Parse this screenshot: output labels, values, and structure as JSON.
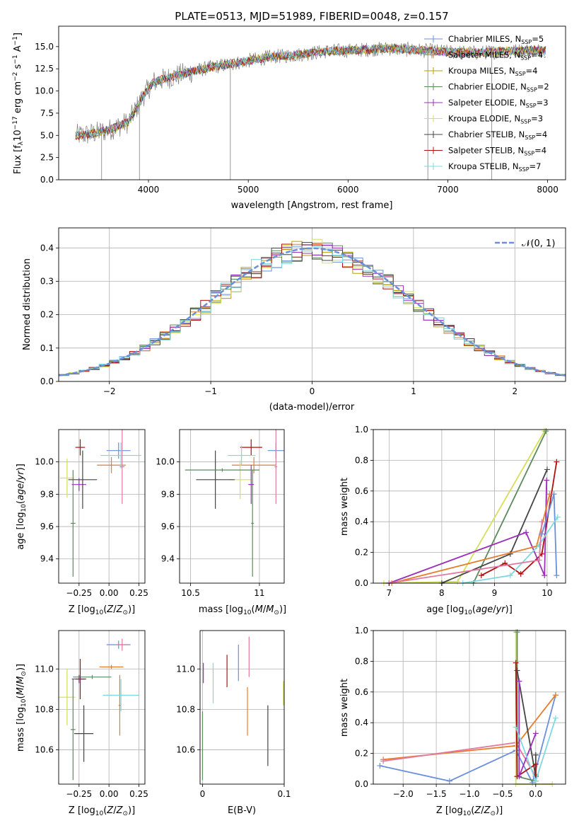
{
  "chart_data": [
    {
      "id": "spectrum",
      "type": "line",
      "title": "PLATE=0513, MJD=51989, FIBERID=0048, z=0.157",
      "xlabel": "wavelength [Angstrom, rest frame]",
      "ylabel": "Flux [f_λ10^-17 erg cm^-2 s^-1 A^-1]",
      "xlim": [
        3100,
        8180
      ],
      "ylim": [
        0,
        17.3
      ],
      "xticks": [
        4000,
        5000,
        6000,
        7000,
        8000
      ],
      "yticks": [
        0.0,
        2.5,
        5.0,
        7.5,
        10.0,
        12.5,
        15.0
      ],
      "grid": false,
      "legend_loc": "right",
      "series": [
        {
          "name": "Chabrier MILES",
          "nssp": "5",
          "color": "#6a8fdc"
        },
        {
          "name": "Salpeter MILES",
          "nssp": "4",
          "color": "#e87c2a"
        },
        {
          "name": "Kroupa MILES",
          "nssp": "4",
          "color": "#b8a000"
        },
        {
          "name": "Chabrier ELODIE",
          "nssp": "2",
          "color": "#5c8a5c"
        },
        {
          "name": "Salpeter ELODIE",
          "nssp": "3",
          "color": "#9b30b8"
        },
        {
          "name": "Kroupa ELODIE",
          "nssp": "3",
          "color": "#d4e05a"
        },
        {
          "name": "Chabrier STELIB",
          "nssp": "4",
          "color": "#444444"
        },
        {
          "name": "Salpeter STELIB",
          "nssp": "4",
          "color": "#b01010"
        },
        {
          "name": "Kroupa STELIB",
          "nssp": "7",
          "color": "#7fd8e0"
        }
      ],
      "data_color": "#808080",
      "continuum": {
        "x": [
          3270,
          3400,
          3600,
          3800,
          3950,
          4050,
          4300,
          4600,
          4900,
          5200,
          5500,
          5800,
          6100,
          6400,
          6700,
          7000,
          7300,
          7600,
          7900
        ],
        "y": [
          5.0,
          5.1,
          5.6,
          6.5,
          9.5,
          11.0,
          11.8,
          12.6,
          13.2,
          13.8,
          14.1,
          14.5,
          14.6,
          14.8,
          14.6,
          14.4,
          14.3,
          14.5,
          14.6
        ]
      },
      "spikes_x": [
        3530,
        3910,
        4820,
        6800,
        7440
      ]
    },
    {
      "id": "residuals",
      "type": "line",
      "xlabel": "(data-model)/error",
      "ylabel": "Normed distribution",
      "xlim": [
        -2.5,
        2.5
      ],
      "ylim": [
        0,
        0.46
      ],
      "xticks": [
        -2,
        -1,
        0,
        1,
        2
      ],
      "yticks": [
        0.0,
        0.1,
        0.2,
        0.3,
        0.4
      ],
      "grid": true,
      "legend_loc": "upper right",
      "legend_label": "𝒩(0, 1)",
      "gaussian_color": "#6a8fdc",
      "bin_width": 0.1
    },
    {
      "id": "age-vs-Z",
      "type": "scatter",
      "xlabel": "Z [log₁₀(Z/Z⊙)]",
      "ylabel": "age  [log₁₀(age/yr)]",
      "xlim": [
        -0.42,
        0.3
      ],
      "ylim": [
        9.25,
        10.2
      ],
      "xticks": [
        -0.25,
        0.0,
        0.25
      ],
      "xticklabels": [
        "−0.25",
        "0.00",
        "0.25"
      ],
      "yticks": [
        9.4,
        9.6,
        9.8,
        10.0
      ],
      "grid": true,
      "points": [
        {
          "x": 0.08,
          "y": 10.07,
          "xerr": 0.1,
          "yerr": 0.05,
          "color": "#6a8fdc"
        },
        {
          "x": 0.02,
          "y": 9.98,
          "xerr": 0.12,
          "yerr": 0.05,
          "color": "#e87c2a"
        },
        {
          "x": -0.35,
          "y": 9.9,
          "xerr": 0.06,
          "yerr": 0.12,
          "color": "#d4e05a"
        },
        {
          "x": -0.3,
          "y": 9.62,
          "xerr": 0.02,
          "yerr": 0.33,
          "color": "#5c8a5c"
        },
        {
          "x": -0.25,
          "y": 9.86,
          "xerr": 0.06,
          "yerr": 0.04,
          "color": "#9b30b8"
        },
        {
          "x": -0.22,
          "y": 9.89,
          "xerr": 0.12,
          "yerr": 0.18,
          "color": "#444444"
        },
        {
          "x": -0.24,
          "y": 10.09,
          "xerr": 0.04,
          "yerr": 0.05,
          "color": "#b01010"
        },
        {
          "x": 0.1,
          "y": 10.04,
          "xerr": 0.17,
          "yerr": 0.08,
          "color": "#7fd8e0"
        },
        {
          "x": 0.11,
          "y": 9.97,
          "xerr": 0.02,
          "yerr": 0.23,
          "color": "#e07aa0"
        }
      ]
    },
    {
      "id": "age-vs-mass",
      "type": "scatter",
      "xlabel": "mass [log₁₀(M/M⊙)]",
      "ylabel": "",
      "xlim": [
        10.42,
        11.18
      ],
      "ylim": [
        9.25,
        10.2
      ],
      "xticks": [
        10.5,
        11.0
      ],
      "yticks": [
        9.4,
        9.6,
        9.8,
        10.0
      ],
      "grid": true,
      "points": [
        {
          "x": 11.12,
          "y": 10.07,
          "xerr": 0.06,
          "yerr": 0.05,
          "color": "#6a8fdc"
        },
        {
          "x": 10.96,
          "y": 9.98,
          "xerr": 0.16,
          "yerr": 0.05,
          "color": "#e87c2a"
        },
        {
          "x": 10.86,
          "y": 9.89,
          "xerr": 0.08,
          "yerr": 0.12,
          "color": "#d4e05a"
        },
        {
          "x": 10.95,
          "y": 9.62,
          "xerr": 0.01,
          "yerr": 0.33,
          "color": "#5c8a5c"
        },
        {
          "x": 10.94,
          "y": 9.86,
          "xerr": 0.02,
          "yerr": 0.12,
          "color": "#9b30b8"
        },
        {
          "x": 10.68,
          "y": 9.89,
          "xerr": 0.14,
          "yerr": 0.18,
          "color": "#444444"
        },
        {
          "x": 10.94,
          "y": 10.09,
          "xerr": 0.08,
          "yerr": 0.05,
          "color": "#b01010"
        },
        {
          "x": 10.87,
          "y": 10.04,
          "xerr": 0.1,
          "yerr": 0.06,
          "color": "#7fd8e0"
        },
        {
          "x": 11.12,
          "y": 9.97,
          "xerr": 0.01,
          "yerr": 0.23,
          "color": "#e07aa0"
        },
        {
          "x": 10.73,
          "y": 9.95,
          "xerr": 0.27,
          "yerr": 0.01,
          "color": "#5c8a5c"
        }
      ]
    },
    {
      "id": "weight-vs-age",
      "type": "line",
      "xlabel": "age  [log₁₀(age/yr)]",
      "ylabel": "mass weight",
      "xlim": [
        6.7,
        10.35
      ],
      "ylim": [
        0,
        1.0
      ],
      "xticks": [
        7,
        8,
        9,
        10
      ],
      "yticks": [
        0.0,
        0.2,
        0.4,
        0.6,
        0.8,
        1.0
      ],
      "grid": true,
      "series": [
        {
          "color": "#d4e05a",
          "x": [
            6.9,
            8.3,
            9.95
          ],
          "y": [
            0.0,
            0.01,
            0.99
          ]
        },
        {
          "color": "#5c8a5c",
          "x": [
            8.6,
            9.98
          ],
          "y": [
            0.0,
            0.99
          ]
        },
        {
          "color": "#444444",
          "x": [
            8.0,
            9.3,
            10.0
          ],
          "y": [
            0.0,
            0.19,
            0.74
          ]
        },
        {
          "color": "#b01010",
          "x": [
            8.75,
            9.2,
            9.5,
            9.9,
            10.18
          ],
          "y": [
            0.05,
            0.13,
            0.06,
            0.19,
            0.79
          ]
        },
        {
          "color": "#9b30b8",
          "x": [
            7.0,
            9.6,
            9.95,
            9.99
          ],
          "y": [
            0.0,
            0.33,
            0.05,
            0.67
          ]
        },
        {
          "color": "#e87c2a",
          "x": [
            7.05,
            9.8,
            10.05
          ],
          "y": [
            0.0,
            0.24,
            0.58
          ]
        },
        {
          "color": "#6a8fdc",
          "x": [
            9.9,
            10.13,
            10.18
          ],
          "y": [
            0.32,
            0.58,
            0.05
          ]
        },
        {
          "color": "#7fd8e0",
          "x": [
            8.4,
            9.3,
            9.85,
            10.2
          ],
          "y": [
            0.0,
            0.05,
            0.25,
            0.43
          ]
        },
        {
          "color": "#e07aa0",
          "x": [
            7.0,
            9.85,
            9.9
          ],
          "y": [
            0.0,
            0.15,
            0.4
          ]
        }
      ]
    },
    {
      "id": "mass-vs-Z",
      "type": "scatter",
      "xlabel": "Z [log₁₀(Z/Z⊙)]",
      "ylabel": "mass [log₁₀(M/M⊙)]",
      "xlim": [
        -0.42,
        0.3
      ],
      "ylim": [
        10.43,
        11.19
      ],
      "xticks": [
        -0.25,
        0.0,
        0.25
      ],
      "xticklabels": [
        "−0.25",
        "0.00",
        "0.25"
      ],
      "yticks": [
        10.6,
        10.8,
        11.0
      ],
      "grid": true,
      "points": [
        {
          "x": 0.08,
          "y": 11.12,
          "xerr": 0.1,
          "yerr": 0.02,
          "color": "#6a8fdc"
        },
        {
          "x": 0.02,
          "y": 11.01,
          "xerr": 0.1,
          "yerr": 0.01,
          "color": "#e87c2a"
        },
        {
          "x": 0.09,
          "y": 10.82,
          "xerr": 0.01,
          "yerr": 0.15,
          "color": "#e87c2a"
        },
        {
          "x": -0.35,
          "y": 10.86,
          "xerr": 0.07,
          "yerr": 0.14,
          "color": "#d4e05a"
        },
        {
          "x": -0.3,
          "y": 10.7,
          "xerr": 0.02,
          "yerr": 0.25,
          "color": "#5c8a5c"
        },
        {
          "x": -0.14,
          "y": 10.96,
          "xerr": 0.16,
          "yerr": 0.01,
          "color": "#5c8a5c"
        },
        {
          "x": -0.25,
          "y": 10.95,
          "xerr": 0.06,
          "yerr": 0.02,
          "color": "#9b30b8"
        },
        {
          "x": -0.21,
          "y": 10.68,
          "xerr": 0.08,
          "yerr": 0.14,
          "color": "#444444"
        },
        {
          "x": -0.24,
          "y": 10.95,
          "xerr": 0.04,
          "yerr": 0.1,
          "color": "#b01010"
        },
        {
          "x": 0.1,
          "y": 10.87,
          "xerr": 0.15,
          "yerr": 0.08,
          "color": "#7fd8e0"
        },
        {
          "x": 0.11,
          "y": 11.12,
          "xerr": 0.05,
          "yerr": 0.03,
          "color": "#e07aa0"
        }
      ]
    },
    {
      "id": "mass-vs-EBV",
      "type": "scatter",
      "xlabel": "E(B-V)",
      "ylabel": "",
      "xlim": [
        -0.003,
        0.1
      ],
      "ylim": [
        10.43,
        11.19
      ],
      "xticks": [
        0.0,
        0.1
      ],
      "yticks": [
        10.6,
        10.8,
        11.0
      ],
      "grid": true,
      "points": [
        {
          "x": 0.0,
          "y": 10.62,
          "xerr": 0,
          "yerr": 0.17,
          "color": "#5c8a5c"
        },
        {
          "x": 0.001,
          "y": 10.98,
          "xerr": 0,
          "yerr": 0.05,
          "color": "#9b30b8"
        },
        {
          "x": 0.013,
          "y": 10.93,
          "xerr": 0,
          "yerr": 0.1,
          "color": "#7fd8e0"
        },
        {
          "x": 0.03,
          "y": 10.99,
          "xerr": 0,
          "yerr": 0.08,
          "color": "#b01010"
        },
        {
          "x": 0.044,
          "y": 11.03,
          "xerr": 0,
          "yerr": 0.09,
          "color": "#6a8fdc"
        },
        {
          "x": 0.055,
          "y": 10.79,
          "xerr": 0,
          "yerr": 0.12,
          "color": "#e87c2a"
        },
        {
          "x": 0.057,
          "y": 11.06,
          "xerr": 0,
          "yerr": 0.1,
          "color": "#e07aa0"
        },
        {
          "x": 0.08,
          "y": 10.67,
          "xerr": 0,
          "yerr": 0.15,
          "color": "#444444"
        },
        {
          "x": 0.099,
          "y": 10.88,
          "xerr": 0,
          "yerr": 0.06,
          "color": "#d4e05a"
        }
      ]
    },
    {
      "id": "weight-vs-Z",
      "type": "line",
      "xlabel": "Z [log₁₀(Z/Z⊙)]",
      "ylabel": "mass weight",
      "xlim": [
        -2.45,
        0.45
      ],
      "ylim": [
        0,
        1.0
      ],
      "xticks": [
        -2.0,
        -1.5,
        -1.0,
        -0.5,
        0.0
      ],
      "xticklabels": [
        "−2.0",
        "−1.5",
        "−1.0",
        "−0.5",
        "0.0"
      ],
      "yticks": [
        0.0,
        0.2,
        0.4,
        0.6,
        0.8,
        1.0
      ],
      "grid": true,
      "series": [
        {
          "color": "#6a8fdc",
          "x": [
            -2.35,
            -1.3,
            -0.3,
            -0.05,
            0.3
          ],
          "y": [
            0.12,
            0.02,
            0.22,
            0.01,
            0.58
          ]
        },
        {
          "color": "#e87c2a",
          "x": [
            -2.3,
            -0.3,
            0.3
          ],
          "y": [
            0.16,
            0.25,
            0.58
          ]
        },
        {
          "color": "#e07aa0",
          "x": [
            -2.3,
            -0.3,
            0.0
          ],
          "y": [
            0.15,
            0.27,
            0.05
          ]
        },
        {
          "color": "#d4e05a",
          "x": [
            -0.3,
            -0.3,
            0.25
          ],
          "y": [
            0.99,
            0.0,
            0.0
          ]
        },
        {
          "color": "#5c8a5c",
          "x": [
            -0.28,
            -0.28,
            0.0
          ],
          "y": [
            0.99,
            0.05,
            0.02
          ]
        },
        {
          "color": "#444444",
          "x": [
            -0.28,
            0.0,
            0.0
          ],
          "y": [
            0.74,
            0.05,
            0.19
          ]
        },
        {
          "color": "#b01010",
          "x": [
            -0.3,
            -0.28,
            0.0,
            0.0
          ],
          "y": [
            0.79,
            0.05,
            0.13,
            0.06
          ]
        },
        {
          "color": "#9b30b8",
          "x": [
            -0.25,
            -0.25,
            0.0
          ],
          "y": [
            0.67,
            0.05,
            0.33
          ]
        },
        {
          "color": "#7fd8e0",
          "x": [
            -0.3,
            0.0,
            0.3
          ],
          "y": [
            0.37,
            0.02,
            0.43
          ]
        }
      ]
    }
  ]
}
